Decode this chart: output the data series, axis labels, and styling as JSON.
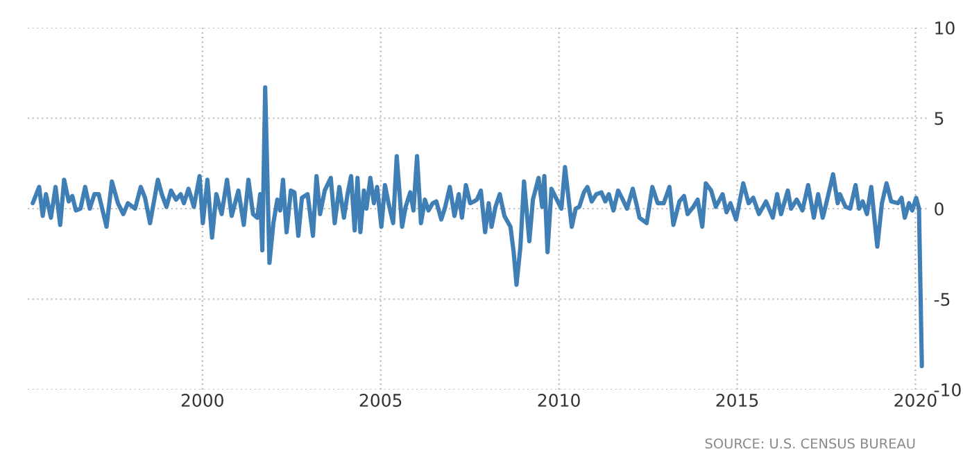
{
  "chart_data": {
    "type": "line",
    "annotations": [
      "SOURCE: U.S. CENSUS BUREAU"
    ],
    "x": [
      1995.24,
      1995.42,
      1995.52,
      1995.61,
      1995.75,
      1995.88,
      1996.01,
      1996.12,
      1996.25,
      1996.35,
      1996.45,
      1996.58,
      1996.71,
      1996.84,
      1996.97,
      1997.09,
      1997.31,
      1997.46,
      1997.63,
      1997.78,
      1997.91,
      1998.11,
      1998.27,
      1998.39,
      1998.53,
      1998.75,
      1998.86,
      1998.99,
      1999.12,
      1999.26,
      1999.39,
      1999.48,
      1999.61,
      1999.76,
      1999.92,
      2000.01,
      2000.14,
      2000.27,
      2000.39,
      2000.54,
      2000.69,
      2000.82,
      2001.01,
      2001.16,
      2001.29,
      2001.42,
      2001.54,
      2001.62,
      2001.68,
      2001.76,
      2001.88,
      2001.99,
      2002.1,
      2002.18,
      2002.26,
      2002.36,
      2002.48,
      2002.58,
      2002.69,
      2002.79,
      2002.95,
      2003.1,
      2003.2,
      2003.3,
      2003.43,
      2003.6,
      2003.71,
      2003.84,
      2003.97,
      2004.07,
      2004.17,
      2004.27,
      2004.35,
      2004.43,
      2004.53,
      2004.6,
      2004.71,
      2004.81,
      2004.9,
      2005.02,
      2005.12,
      2005.22,
      2005.35,
      2005.45,
      2005.6,
      2005.7,
      2005.83,
      2005.92,
      2006.02,
      2006.13,
      2006.24,
      2006.34,
      2006.46,
      2006.56,
      2006.7,
      2006.81,
      2006.94,
      2007.07,
      2007.19,
      2007.28,
      2007.39,
      2007.51,
      2007.62,
      2007.7,
      2007.81,
      2007.93,
      2008.03,
      2008.11,
      2008.22,
      2008.34,
      2008.47,
      2008.64,
      2008.73,
      2008.81,
      2008.92,
      2009.02,
      2009.17,
      2009.27,
      2009.43,
      2009.53,
      2009.59,
      2009.68,
      2009.79,
      2009.94,
      2010.07,
      2010.17,
      2010.36,
      2010.47,
      2010.57,
      2010.7,
      2010.8,
      2010.92,
      2011.05,
      2011.19,
      2011.3,
      2011.4,
      2011.53,
      2011.66,
      2011.79,
      2011.91,
      2012.07,
      2012.17,
      2012.26,
      2012.46,
      2012.62,
      2012.77,
      2012.94,
      2013.1,
      2013.21,
      2013.38,
      2013.51,
      2013.61,
      2013.77,
      2013.89,
      2014.02,
      2014.12,
      2014.27,
      2014.4,
      2014.59,
      2014.7,
      2014.81,
      2014.97,
      2015.17,
      2015.32,
      2015.45,
      2015.61,
      2015.81,
      2016.0,
      2016.12,
      2016.23,
      2016.42,
      2016.51,
      2016.67,
      2016.83,
      2016.99,
      2017.15,
      2017.27,
      2017.4,
      2017.5,
      2017.69,
      2017.82,
      2017.88,
      2018.04,
      2018.17,
      2018.32,
      2018.42,
      2018.52,
      2018.64,
      2018.76,
      2018.93,
      2019.06,
      2019.19,
      2019.32,
      2019.51,
      2019.61,
      2019.7,
      2019.82,
      2019.91,
      2020.02,
      2020.1,
      2020.18
    ],
    "series": [
      {
        "color": "#3f7fb5",
        "values": [
          0.3,
          1.2,
          -0.4,
          0.8,
          -0.5,
          1.2,
          -0.9,
          1.6,
          0.4,
          0.7,
          -0.1,
          0,
          1.2,
          0,
          0.8,
          0.8,
          -1.0,
          1.5,
          0.3,
          -0.3,
          0.3,
          0,
          1.2,
          0.6,
          -0.8,
          1.6,
          0.8,
          0.1,
          1.0,
          0.5,
          0.8,
          0.3,
          1.1,
          0.1,
          1.8,
          -0.8,
          1.6,
          -1.6,
          0.8,
          -0.3,
          1.6,
          -0.4,
          1.0,
          -0.9,
          1.6,
          -0.3,
          -0.5,
          0.8,
          -2.3,
          6.7,
          -3.0,
          -0.8,
          0.5,
          -0.1,
          1.6,
          -1.3,
          1.0,
          0.9,
          -1.5,
          0.6,
          0.8,
          -1.5,
          1.8,
          -0.3,
          1.0,
          1.7,
          -0.8,
          1.2,
          -0.5,
          0.8,
          1.8,
          -1.2,
          1.7,
          -1.3,
          1.0,
          0,
          1.7,
          0.3,
          1.2,
          -1.0,
          1.3,
          0.3,
          -0.8,
          2.9,
          -1.0,
          0.1,
          0.9,
          -0.1,
          2.9,
          -0.8,
          0.5,
          -0.1,
          0.3,
          0.4,
          -0.6,
          0.1,
          1.2,
          -0.4,
          0.8,
          -0.5,
          1.3,
          0.3,
          0.4,
          0.5,
          1.0,
          -1.3,
          0.3,
          -1.0,
          0.1,
          0.8,
          -0.4,
          -1.0,
          -2.4,
          -4.2,
          -2.1,
          1.5,
          -1.8,
          0.5,
          1.7,
          0.1,
          1.8,
          -2.4,
          1.1,
          0.5,
          0,
          2.3,
          -1.0,
          0,
          0.1,
          0.9,
          1.2,
          0.4,
          0.8,
          0.9,
          0.4,
          0.8,
          -0.1,
          1.0,
          0.5,
          0,
          1.1,
          0.3,
          -0.5,
          -0.8,
          1.2,
          0.3,
          0.3,
          1.2,
          -0.9,
          0.4,
          0.7,
          -0.3,
          0.1,
          0.5,
          -1.0,
          1.4,
          1.0,
          0.1,
          0.8,
          -0.2,
          0.3,
          -0.6,
          1.4,
          0.3,
          0.6,
          -0.3,
          0.4,
          -0.5,
          0.8,
          -0.3,
          1.0,
          0,
          0.5,
          -0.1,
          1.3,
          -0.5,
          0.8,
          -0.5,
          0.3,
          1.9,
          0.3,
          0.8,
          0.1,
          0,
          1.3,
          0,
          0.4,
          -0.3,
          1.2,
          -2.1,
          0.3,
          1.4,
          0.4,
          0.3,
          0.6,
          -0.5,
          0.3,
          -0.1,
          0.6,
          0,
          -8.7
        ]
      }
    ],
    "xlim": [
      1995.1,
      2020.4
    ],
    "xticks": [
      2000,
      2005,
      2010,
      2015,
      2020
    ],
    "ylim": [
      -10,
      10
    ],
    "yticks": [
      -10,
      -5,
      0,
      5,
      10
    ],
    "grid": true,
    "legend": false,
    "marker": "none",
    "line_style": "solid"
  }
}
